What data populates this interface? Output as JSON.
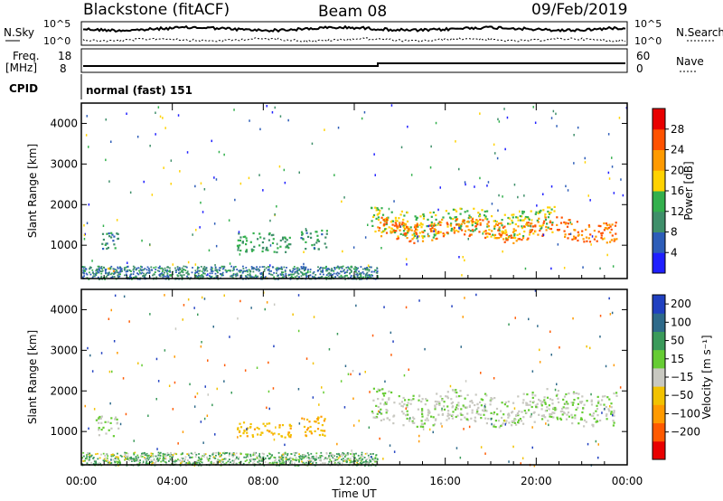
{
  "header": {
    "station": "Blackstone (fitACF)",
    "beam": "Beam 08",
    "date": "09/Feb/2019"
  },
  "top_panels": {
    "nsky_label": "N.Sky",
    "nsearch_label": "N.Search",
    "noise_ticks": [
      "10^5",
      "10^0"
    ],
    "freq_label_line1": "Freq.",
    "freq_label_line2": "[MHz]",
    "freq_ticks": [
      "18",
      "8"
    ],
    "nave_label": "Nave",
    "nave_ticks": [
      "60",
      "0"
    ],
    "cpid_label": "CPID",
    "cpid_value": "normal (fast) 151"
  },
  "chart_data": [
    {
      "type": "heatmap",
      "name": "power",
      "ylabel": "Slant Range [km]",
      "ylim": [
        180,
        4500
      ],
      "yticks": [
        "1000",
        "2000",
        "3000",
        "4000"
      ],
      "colorbar_label": "Power [dB]",
      "colorbar_ticks": [
        "4",
        "8",
        "12",
        "16",
        "20",
        "24",
        "28"
      ],
      "colorbar_range": [
        0,
        32
      ],
      "colors": [
        "#1f1fff",
        "#2d5db8",
        "#3f8f6a",
        "#33b04d",
        "#ffd200",
        "#ff9a00",
        "#ff5200",
        "#e80000"
      ],
      "patches": [
        {
          "t0": 0.7,
          "t1": 1.6,
          "r0": 900,
          "r1": 1350,
          "level": 10
        },
        {
          "t0": 1.1,
          "t1": 1.5,
          "r0": 330,
          "r1": 480,
          "level": 20
        },
        {
          "t0": 6.8,
          "t1": 9.2,
          "r0": 850,
          "r1": 1350,
          "level": 12
        },
        {
          "t0": 9.6,
          "t1": 10.8,
          "r0": 900,
          "r1": 1400,
          "level": 11
        },
        {
          "t0": 12.7,
          "t1": 20.8,
          "r0": 1250,
          "r1": 1900,
          "level": 16
        },
        {
          "t0": 13.0,
          "t1": 23.5,
          "r0": 1150,
          "r1": 1650,
          "level": 24
        }
      ]
    },
    {
      "type": "heatmap",
      "name": "velocity",
      "ylabel": "Slant Range [km]",
      "ylim": [
        180,
        4500
      ],
      "yticks": [
        "1000",
        "2000",
        "3000",
        "4000"
      ],
      "colorbar_label": "Velocity [m s⁻¹]",
      "colorbar_ticks": [
        "200",
        "100",
        "50",
        "15",
        "−15",
        "−50",
        "−100",
        "−200"
      ],
      "colors": [
        "#2040c0",
        "#2e6a8a",
        "#3a9a5a",
        "#66cc33",
        "#c8c8c0",
        "#f2c200",
        "#ff9a00",
        "#ff5a00",
        "#e80000"
      ],
      "patches": [
        {
          "t0": 0.6,
          "t1": 1.6,
          "r0": 900,
          "r1": 1400,
          "level": 0
        },
        {
          "t0": 6.8,
          "t1": 9.2,
          "r0": 850,
          "r1": 1250,
          "level": -40
        },
        {
          "t0": 9.6,
          "t1": 10.8,
          "r0": 900,
          "r1": 1400,
          "level": -50
        },
        {
          "t0": 12.7,
          "t1": 23.5,
          "r0": 1200,
          "r1": 2000,
          "level": 0
        }
      ]
    }
  ],
  "x_axis": {
    "label": "Time UT",
    "ticks": [
      "00:00",
      "04:00",
      "08:00",
      "12:00",
      "16:00",
      "20:00",
      "00:00"
    ],
    "range_hours": [
      0,
      24
    ]
  }
}
